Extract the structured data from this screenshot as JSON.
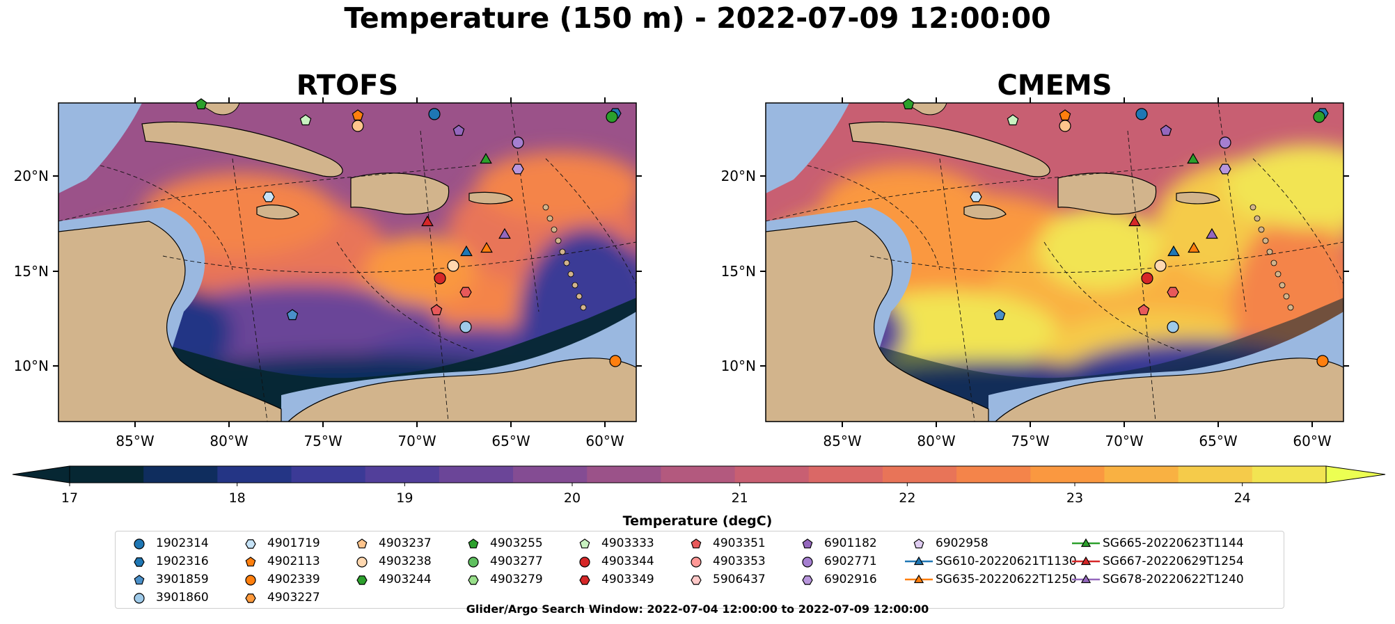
{
  "title": "Temperature (150 m) - 2022-07-09 12:00:00",
  "panels": [
    {
      "title": "RTOFS"
    },
    {
      "title": "CMEMS"
    }
  ],
  "lat_ticks": [
    "20°N",
    "15°N",
    "10°N"
  ],
  "lon_ticks": [
    "85°W",
    "80°W",
    "75°W",
    "70°W",
    "65°W",
    "60°W"
  ],
  "colorbar": {
    "label": "Temperature (degC)",
    "ticks": [
      "17",
      "18",
      "19",
      "20",
      "21",
      "22",
      "23",
      "24"
    ],
    "range": [
      17,
      24.5
    ],
    "colors": [
      "#062733",
      "#0f2d5e",
      "#243585",
      "#3b3a96",
      "#523f9a",
      "#6b4598",
      "#844c93",
      "#9b5289",
      "#b3597e",
      "#c85f72",
      "#da6866",
      "#e87458",
      "#f4844a",
      "#fa9840",
      "#f9b142",
      "#f5cb4a",
      "#f2e452"
    ]
  },
  "legend": {
    "columns": [
      [
        {
          "label": "1902314",
          "shape": "circle",
          "color": "#1f77b4"
        },
        {
          "label": "1902316",
          "shape": "hexagon",
          "color": "#1f77b4"
        },
        {
          "label": "3901859",
          "shape": "pentagon",
          "color": "#4a8fc8"
        },
        {
          "label": "3901860",
          "shape": "circle",
          "color": "#9ecae9"
        }
      ],
      [
        {
          "label": "4901719",
          "shape": "hexagon",
          "color": "#c6e3f7"
        },
        {
          "label": "4902113",
          "shape": "pentagon",
          "color": "#ff7f0e"
        },
        {
          "label": "4902339",
          "shape": "circle",
          "color": "#ff7f0e"
        },
        {
          "label": "4903227",
          "shape": "hexagon",
          "color": "#ff9a3c"
        }
      ],
      [
        {
          "label": "4903237",
          "shape": "pentagon",
          "color": "#ffc48c"
        },
        {
          "label": "4903238",
          "shape": "circle",
          "color": "#ffd8b0"
        },
        {
          "label": "4903244",
          "shape": "hexagon",
          "color": "#2ca02c"
        }
      ],
      [
        {
          "label": "4903255",
          "shape": "pentagon",
          "color": "#2ca02c"
        },
        {
          "label": "4903277",
          "shape": "circle",
          "color": "#5fc05f"
        },
        {
          "label": "4903279",
          "shape": "hexagon",
          "color": "#98df8a"
        }
      ],
      [
        {
          "label": "4903333",
          "shape": "pentagon",
          "color": "#c8f2c0"
        },
        {
          "label": "4903344",
          "shape": "circle",
          "color": "#d62728"
        },
        {
          "label": "4903349",
          "shape": "hexagon",
          "color": "#d62728"
        }
      ],
      [
        {
          "label": "4903351",
          "shape": "pentagon",
          "color": "#e8595a"
        },
        {
          "label": "4903353",
          "shape": "circle",
          "color": "#ff9896"
        },
        {
          "label": "5906437",
          "shape": "hexagon",
          "color": "#ffc9c8"
        }
      ],
      [
        {
          "label": "6901182",
          "shape": "pentagon",
          "color": "#9467bd"
        },
        {
          "label": "6902771",
          "shape": "circle",
          "color": "#a57fd0"
        },
        {
          "label": "6902916",
          "shape": "hexagon",
          "color": "#b896dc"
        }
      ],
      [
        {
          "label": "6902958",
          "shape": "pentagon",
          "color": "#e0cdf2"
        },
        {
          "label": "SG610-20220621T1130",
          "shape": "triangle",
          "color": "#1f77b4"
        },
        {
          "label": "SG635-20220622T1250",
          "shape": "triangle",
          "color": "#ff7f0e"
        }
      ],
      [
        {
          "label": "SG665-20220623T1144",
          "shape": "triangle",
          "color": "#2ca02c"
        },
        {
          "label": "SG667-20220629T1254",
          "shape": "triangle",
          "color": "#d62728"
        },
        {
          "label": "SG678-20220622T1240",
          "shape": "triangle",
          "color": "#9467bd"
        }
      ]
    ]
  },
  "footer": "Glider/Argo Search Window: 2022-07-04 12:00:00 to 2022-07-09 12:00:00",
  "colors": {
    "land": "#d2b48c",
    "shelf": "#9ab8e0",
    "deep": "#062733"
  }
}
